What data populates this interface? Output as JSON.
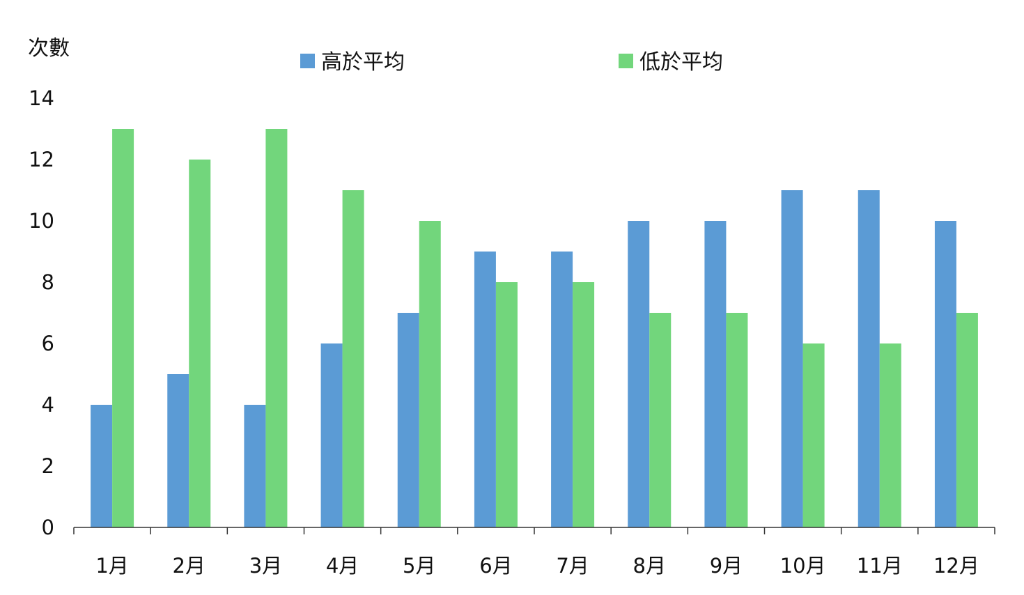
{
  "chart_data": {
    "type": "bar",
    "title": "",
    "xlabel": "",
    "ylabel": "次數",
    "ylim": [
      0,
      14
    ],
    "yticks": [
      "0",
      "2",
      "4",
      "6",
      "8",
      "10",
      "12",
      "14"
    ],
    "grid": false,
    "legend_position": "top",
    "categories": [
      "1月",
      "2月",
      "3月",
      "4月",
      "5月",
      "6月",
      "7月",
      "8月",
      "9月",
      "10月",
      "11月",
      "12月"
    ],
    "series": [
      {
        "name": "高於平均",
        "color": "#5b9bd5",
        "values": [
          4,
          5,
          4,
          6,
          7,
          9,
          9,
          10,
          10,
          11,
          11,
          10
        ]
      },
      {
        "name": "低於平均",
        "color": "#72d67c",
        "values": [
          13,
          12,
          13,
          11,
          10,
          8,
          8,
          7,
          7,
          6,
          6,
          7
        ]
      }
    ]
  }
}
